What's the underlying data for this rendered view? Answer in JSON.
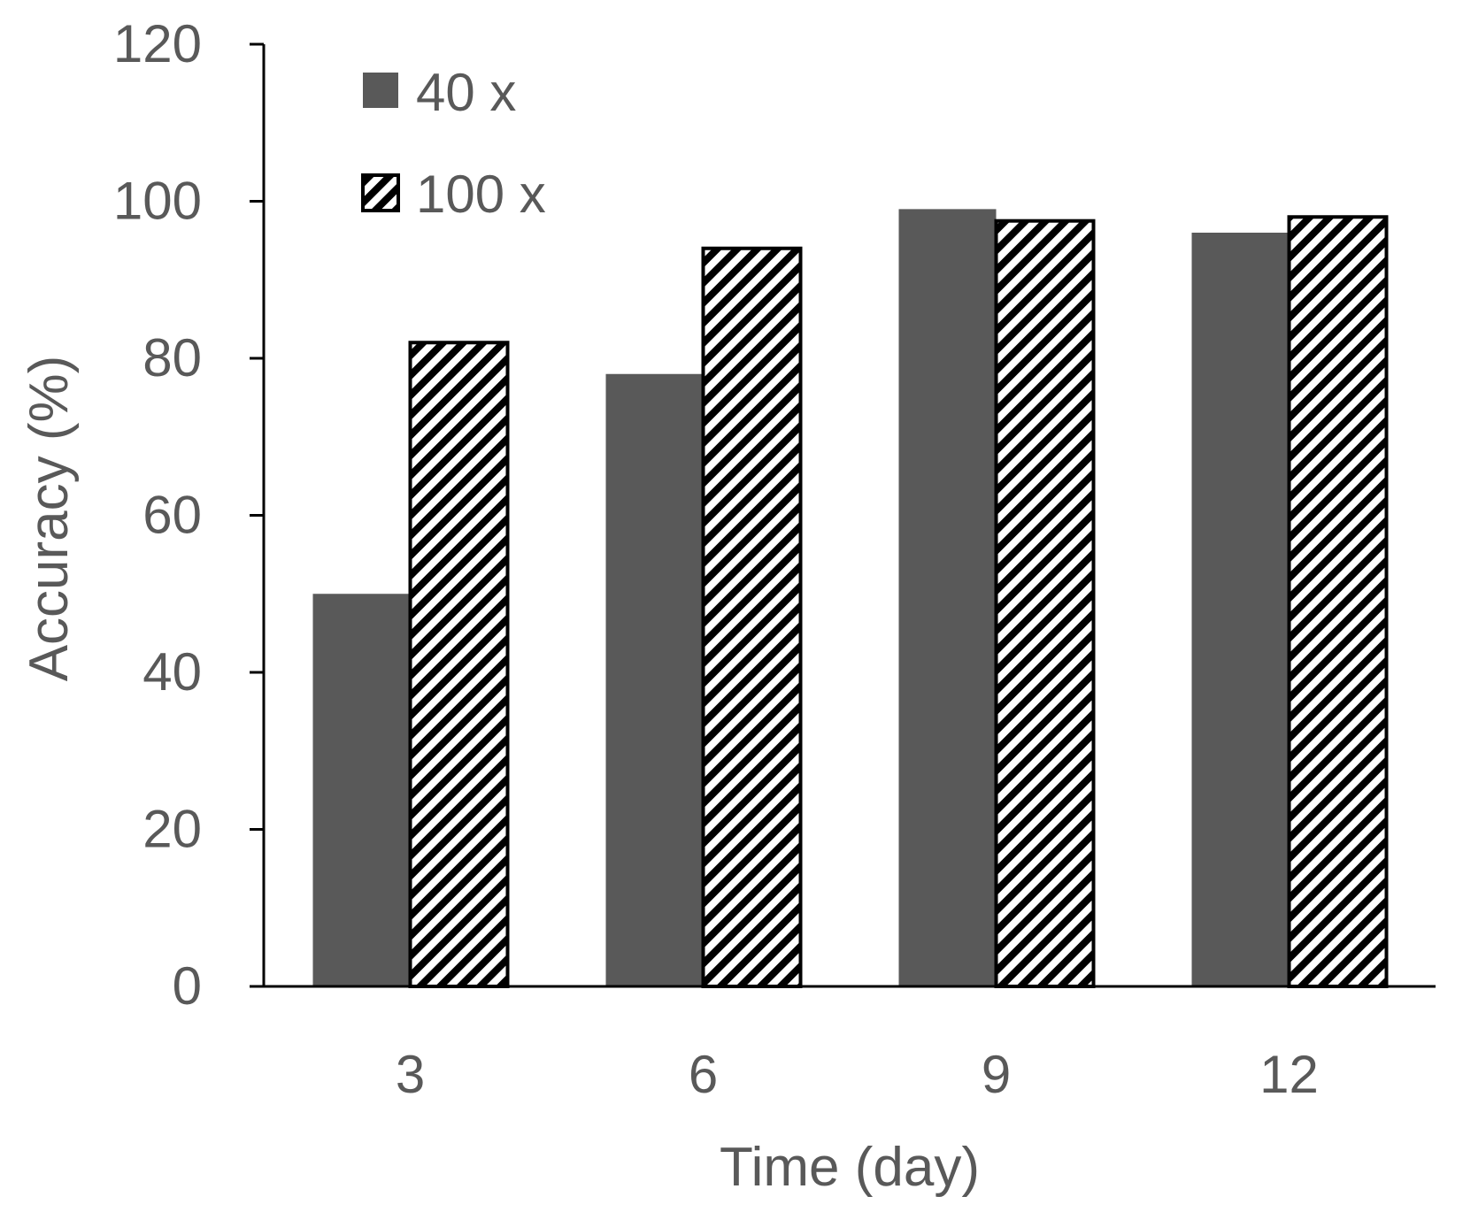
{
  "chart_data": {
    "type": "bar",
    "categories": [
      "3",
      "6",
      "9",
      "12"
    ],
    "series": [
      {
        "name": "40 x",
        "values": [
          50,
          78,
          99,
          96
        ],
        "fill": "#595959",
        "pattern": "solid"
      },
      {
        "name": "100 x",
        "values": [
          82,
          94,
          97.5,
          98
        ],
        "fill": "#ffffff",
        "pattern": "diagonal-hatch"
      }
    ],
    "xlabel": "Time (day)",
    "ylabel": "Accuracy (%)",
    "ylim": [
      0,
      120
    ],
    "yticks": [
      0,
      20,
      40,
      60,
      80,
      100,
      120
    ],
    "grid": false,
    "legend_position": "top-left",
    "colors": {
      "text": "#595959",
      "axis": "#000000",
      "solid_bar": "#595959",
      "hatch": "#000000"
    }
  }
}
